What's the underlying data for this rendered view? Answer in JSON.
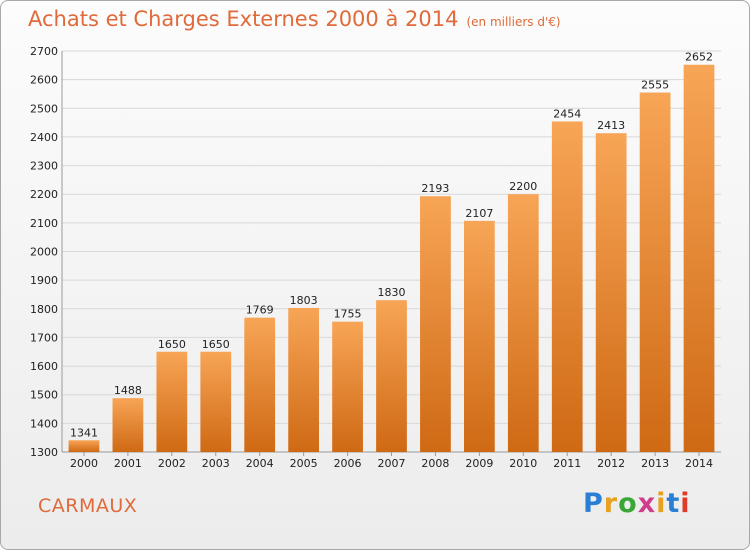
{
  "header": {
    "title": "Achats et Charges Externes 2000 à 2014",
    "subtitle": "(en milliers d'€)"
  },
  "footer": {
    "city": "CARMAUX",
    "logo_text": "Proxiti",
    "logo_colors": [
      "#2a7fd4",
      "#e8a020",
      "#3aa636",
      "#d23c8c",
      "#e8a020",
      "#2a7fd4",
      "#e03a2a"
    ]
  },
  "colors": {
    "accent": "#e06a3a",
    "bar_top": "#f7a556",
    "bar_bottom": "#cf6914",
    "grid": "#d8d8d8"
  },
  "chart_data": {
    "type": "bar",
    "title": "Achats et Charges Externes 2000 à 2014",
    "subtitle": "(en milliers d'€)",
    "xlabel": "",
    "ylabel": "",
    "categories": [
      "2000",
      "2001",
      "2002",
      "2003",
      "2004",
      "2005",
      "2006",
      "2007",
      "2008",
      "2009",
      "2010",
      "2011",
      "2012",
      "2013",
      "2014"
    ],
    "values": [
      1341,
      1488,
      1650,
      1650,
      1769,
      1803,
      1755,
      1830,
      2193,
      2107,
      2200,
      2454,
      2413,
      2555,
      2652
    ],
    "ylim": [
      1300,
      2700
    ],
    "yticks": [
      1300,
      1400,
      1500,
      1600,
      1700,
      1800,
      1900,
      2000,
      2100,
      2200,
      2300,
      2400,
      2500,
      2600,
      2700
    ],
    "grid": true,
    "legend": "none"
  }
}
